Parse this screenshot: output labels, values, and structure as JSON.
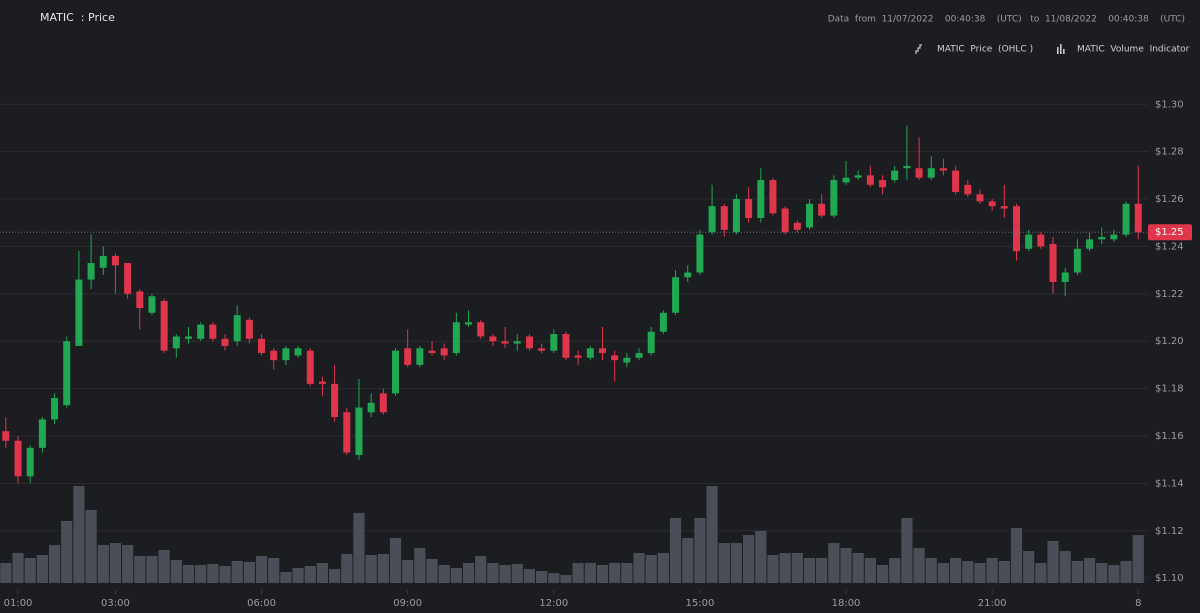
{
  "chart_data": {
    "type": "candlestick",
    "title": "MATIC  : Price",
    "range_note": "Data  from  11/07/2022    00:40:38    (UTC)   to  11/08/2022    00:40:38    (UTC)",
    "x": [
      0.75,
      1,
      1.25,
      1.5,
      1.75,
      2,
      2.25,
      2.5,
      2.75,
      3,
      3.25,
      3.5,
      3.75,
      4,
      4.25,
      4.5,
      4.75,
      5,
      5.25,
      5.5,
      5.75,
      6,
      6.25,
      6.5,
      6.75,
      7,
      7.25,
      7.5,
      7.75,
      8,
      8.25,
      8.5,
      8.75,
      9,
      9.25,
      9.5,
      9.75,
      10,
      10.25,
      10.5,
      10.75,
      11,
      11.25,
      11.5,
      11.75,
      12,
      12.25,
      12.5,
      12.75,
      13,
      13.25,
      13.5,
      13.75,
      14,
      14.25,
      14.5,
      14.75,
      15,
      15.25,
      15.5,
      15.75,
      16,
      16.25,
      16.5,
      16.75,
      17,
      17.25,
      17.5,
      17.75,
      18,
      18.25,
      18.5,
      18.75,
      19,
      19.25,
      19.5,
      19.75,
      20,
      20.25,
      20.5,
      20.75,
      21,
      21.25,
      21.5,
      21.75,
      22,
      22.25,
      22.5,
      22.75,
      23,
      23.25,
      23.5,
      23.75,
      24
    ],
    "series": [
      {
        "name": "MATIC  Price  (OHLC )",
        "color_up": "#21a853",
        "color_down": "#e0364c",
        "open": [
          1.162,
          1.158,
          1.143,
          1.155,
          1.167,
          1.173,
          1.198,
          1.226,
          1.231,
          1.236,
          1.233,
          1.221,
          1.212,
          1.217,
          1.197,
          1.201,
          1.201,
          1.207,
          1.201,
          1.2,
          1.209,
          1.201,
          1.196,
          1.192,
          1.194,
          1.196,
          1.183,
          1.182,
          1.17,
          1.152,
          1.17,
          1.178,
          1.178,
          1.197,
          1.19,
          1.196,
          1.197,
          1.195,
          1.207,
          1.208,
          1.202,
          1.2,
          1.199,
          1.202,
          1.197,
          1.196,
          1.203,
          1.194,
          1.193,
          1.197,
          1.194,
          1.191,
          1.193,
          1.195,
          1.204,
          1.212,
          1.227,
          1.229,
          1.246,
          1.257,
          1.246,
          1.26,
          1.252,
          1.268,
          1.256,
          1.25,
          1.248,
          1.258,
          1.253,
          1.267,
          1.269,
          1.27,
          1.268,
          1.268,
          1.273,
          1.273,
          1.269,
          1.273,
          1.272,
          1.266,
          1.262,
          1.259,
          1.257,
          1.257,
          1.239,
          1.245,
          1.241,
          1.225,
          1.229,
          1.239,
          1.243,
          1.243,
          1.245,
          1.258
        ],
        "high": [
          1.168,
          1.16,
          1.156,
          1.168,
          1.178,
          1.202,
          1.238,
          1.245,
          1.24,
          1.237,
          1.233,
          1.222,
          1.22,
          1.218,
          1.203,
          1.206,
          1.208,
          1.208,
          1.203,
          1.215,
          1.21,
          1.203,
          1.197,
          1.198,
          1.198,
          1.197,
          1.185,
          1.19,
          1.172,
          1.184,
          1.178,
          1.18,
          1.197,
          1.205,
          1.198,
          1.2,
          1.199,
          1.212,
          1.213,
          1.209,
          1.203,
          1.206,
          1.203,
          1.203,
          1.199,
          1.205,
          1.204,
          1.196,
          1.198,
          1.206,
          1.196,
          1.195,
          1.197,
          1.206,
          1.213,
          1.23,
          1.232,
          1.247,
          1.266,
          1.258,
          1.262,
          1.265,
          1.273,
          1.269,
          1.257,
          1.251,
          1.26,
          1.262,
          1.27,
          1.276,
          1.272,
          1.274,
          1.27,
          1.274,
          1.291,
          1.286,
          1.278,
          1.277,
          1.274,
          1.268,
          1.264,
          1.26,
          1.266,
          1.258,
          1.247,
          1.246,
          1.244,
          1.231,
          1.243,
          1.246,
          1.248,
          1.247,
          1.259,
          1.274
        ],
        "low": [
          1.155,
          1.14,
          1.14,
          1.153,
          1.165,
          1.172,
          1.198,
          1.222,
          1.228,
          1.22,
          1.218,
          1.205,
          1.211,
          1.195,
          1.193,
          1.199,
          1.2,
          1.2,
          1.196,
          1.198,
          1.199,
          1.194,
          1.188,
          1.19,
          1.193,
          1.181,
          1.177,
          1.166,
          1.152,
          1.15,
          1.168,
          1.169,
          1.177,
          1.189,
          1.189,
          1.194,
          1.192,
          1.194,
          1.206,
          1.201,
          1.198,
          1.197,
          1.196,
          1.196,
          1.195,
          1.195,
          1.192,
          1.19,
          1.192,
          1.192,
          1.183,
          1.189,
          1.192,
          1.194,
          1.203,
          1.211,
          1.225,
          1.228,
          1.245,
          1.244,
          1.245,
          1.25,
          1.25,
          1.253,
          1.245,
          1.246,
          1.247,
          1.252,
          1.252,
          1.266,
          1.268,
          1.265,
          1.262,
          1.267,
          1.268,
          1.268,
          1.268,
          1.27,
          1.262,
          1.261,
          1.258,
          1.255,
          1.252,
          1.234,
          1.238,
          1.239,
          1.22,
          1.219,
          1.228,
          1.238,
          1.241,
          1.242,
          1.244,
          1.243
        ],
        "close": [
          1.158,
          1.143,
          1.155,
          1.167,
          1.176,
          1.2,
          1.226,
          1.233,
          1.236,
          1.232,
          1.22,
          1.214,
          1.219,
          1.196,
          1.202,
          1.202,
          1.207,
          1.201,
          1.198,
          1.211,
          1.201,
          1.195,
          1.192,
          1.197,
          1.197,
          1.182,
          1.182,
          1.168,
          1.153,
          1.172,
          1.174,
          1.17,
          1.196,
          1.19,
          1.197,
          1.195,
          1.194,
          1.208,
          1.208,
          1.202,
          1.2,
          1.199,
          1.2,
          1.197,
          1.196,
          1.203,
          1.193,
          1.193,
          1.197,
          1.195,
          1.192,
          1.193,
          1.195,
          1.204,
          1.212,
          1.227,
          1.229,
          1.245,
          1.257,
          1.247,
          1.26,
          1.252,
          1.268,
          1.254,
          1.246,
          1.247,
          1.258,
          1.253,
          1.268,
          1.269,
          1.27,
          1.266,
          1.265,
          1.272,
          1.274,
          1.269,
          1.273,
          1.272,
          1.263,
          1.262,
          1.259,
          1.257,
          1.256,
          1.238,
          1.245,
          1.24,
          1.225,
          1.229,
          1.239,
          1.243,
          1.244,
          1.245,
          1.258,
          1.246
        ]
      },
      {
        "name": "MATIC  Volume  Indicator",
        "color": "#4a4e56",
        "values": [
          20,
          30,
          25,
          28,
          38,
          62,
          97,
          73,
          38,
          40,
          38,
          27,
          27,
          33,
          23,
          18,
          18,
          19,
          17,
          22,
          21,
          27,
          25,
          11,
          15,
          17,
          20,
          14,
          29,
          70,
          28,
          29,
          45,
          23,
          35,
          24,
          18,
          15,
          20,
          27,
          20,
          18,
          19,
          14,
          12,
          10,
          8,
          20,
          20,
          18,
          20,
          20,
          30,
          28,
          30,
          65,
          45,
          65,
          97,
          40,
          40,
          48,
          52,
          28,
          30,
          30,
          25,
          25,
          40,
          35,
          30,
          25,
          18,
          25,
          65,
          35,
          25,
          20,
          25,
          22,
          20,
          25,
          22,
          55,
          32,
          20,
          42,
          32,
          22,
          25,
          20,
          18,
          22,
          48
        ]
      }
    ],
    "price_line": {
      "value": 1.246,
      "label": "$1.25"
    },
    "xlim": [
      0.63,
      24.2
    ],
    "xticks": [
      {
        "value": 1,
        "label": "01:00"
      },
      {
        "value": 3,
        "label": "03:00"
      },
      {
        "value": 6,
        "label": "06:00"
      },
      {
        "value": 9,
        "label": "09:00"
      },
      {
        "value": 12,
        "label": "12:00"
      },
      {
        "value": 15,
        "label": "15:00"
      },
      {
        "value": 18,
        "label": "18:00"
      },
      {
        "value": 21,
        "label": "21:00"
      },
      {
        "value": 24,
        "label": "8"
      }
    ],
    "ylim": [
      1.095,
      1.344
    ],
    "yticks": [
      {
        "value": 1.1,
        "label": "$1.10"
      },
      {
        "value": 1.12,
        "label": "$1.12"
      },
      {
        "value": 1.14,
        "label": "$1.14"
      },
      {
        "value": 1.16,
        "label": "$1.16"
      },
      {
        "value": 1.18,
        "label": "$1.18"
      },
      {
        "value": 1.2,
        "label": "$1.20"
      },
      {
        "value": 1.22,
        "label": "$1.22"
      },
      {
        "value": 1.24,
        "label": "$1.24"
      },
      {
        "value": 1.26,
        "label": "$1.26"
      },
      {
        "value": 1.28,
        "label": "$1.28"
      },
      {
        "value": 1.3,
        "label": "$1.30"
      }
    ],
    "grid": true
  }
}
